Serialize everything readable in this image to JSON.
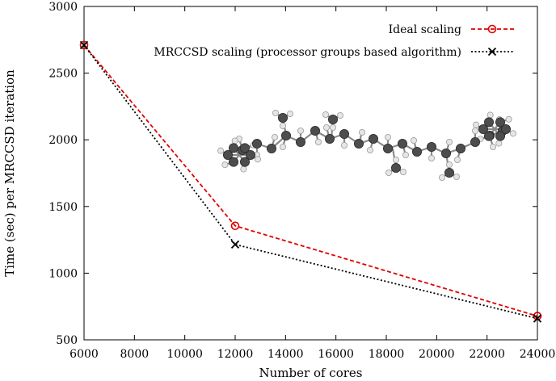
{
  "chart_data": {
    "type": "line",
    "title": "",
    "xlabel": "Number of cores",
    "ylabel": "Time (sec) per MRCCSD iteration",
    "xlim": [
      6000,
      24000
    ],
    "ylim": [
      500,
      3000
    ],
    "xticks": [
      6000,
      8000,
      10000,
      12000,
      14000,
      16000,
      18000,
      20000,
      22000,
      24000
    ],
    "yticks": [
      500,
      1000,
      1500,
      2000,
      2500,
      3000
    ],
    "grid": false,
    "legend_position": "top-right",
    "series": [
      {
        "name": "Ideal scaling",
        "color": "#e00000",
        "marker": "circle",
        "line": "dashed",
        "x": [
          6000,
          12000,
          24000
        ],
        "y": [
          2710,
          1355,
          678
        ]
      },
      {
        "name": "MRCCSD scaling (processor groups based algorithm)",
        "color": "#000000",
        "marker": "x",
        "line": "dotted",
        "x": [
          6000,
          12000,
          24000
        ],
        "y": [
          2710,
          1215,
          660
        ]
      }
    ],
    "inset_image": "ball-and-stick molecule model"
  }
}
